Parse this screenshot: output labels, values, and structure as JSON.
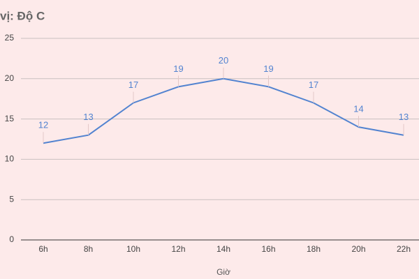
{
  "chart_data": {
    "type": "line",
    "title": "vị: Độ C",
    "x_label": "Giờ",
    "categories": [
      "6h",
      "8h",
      "10h",
      "12h",
      "14h",
      "16h",
      "18h",
      "20h",
      "22h"
    ],
    "values": [
      12,
      13,
      17,
      19,
      20,
      19,
      17,
      14,
      13
    ],
    "color": "#5283d0",
    "ylim": [
      0,
      25
    ],
    "yticks": [
      0,
      5,
      10,
      15,
      20,
      25
    ],
    "grid": true
  }
}
